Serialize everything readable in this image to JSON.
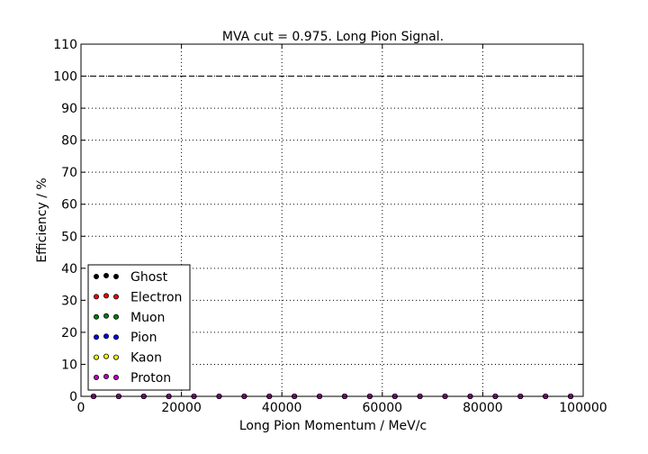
{
  "chart_data": {
    "type": "scatter",
    "title": "MVA cut = 0.975. Long Pion Signal.",
    "xlabel": "Long Pion Momentum / MeV/c",
    "ylabel": "Efficiency / %",
    "xlim": [
      0,
      100000
    ],
    "ylim": [
      0,
      110
    ],
    "xticks": [
      0,
      20000,
      40000,
      60000,
      80000,
      100000
    ],
    "yticks": [
      0,
      10,
      20,
      30,
      40,
      50,
      60,
      70,
      80,
      90,
      100,
      110
    ],
    "grid": true,
    "reference_line": {
      "y": 100,
      "style": "dashed"
    },
    "legend_position": "lower-left",
    "x": [
      2500,
      7500,
      12500,
      17500,
      22500,
      27500,
      32500,
      37500,
      42500,
      47500,
      52500,
      57500,
      62500,
      67500,
      72500,
      77500,
      82500,
      87500,
      92500,
      97500
    ],
    "series": [
      {
        "name": "Ghost",
        "color": "#000000",
        "values": [
          0,
          0,
          0,
          0,
          0,
          0,
          0,
          0,
          0,
          0,
          0,
          0,
          0,
          0,
          0,
          0,
          0,
          0,
          0,
          0
        ]
      },
      {
        "name": "Electron",
        "color": "#ff0000",
        "values": [
          0,
          0,
          0,
          0,
          0,
          0,
          0,
          0,
          0,
          0,
          0,
          0,
          0,
          0,
          0,
          0,
          0,
          0,
          0,
          0
        ]
      },
      {
        "name": "Muon",
        "color": "#008000",
        "values": [
          0,
          0,
          0,
          0,
          0,
          0,
          0,
          0,
          0,
          0,
          0,
          0,
          0,
          0,
          0,
          0,
          0,
          0,
          0,
          0
        ]
      },
      {
        "name": "Pion",
        "color": "#0000ff",
        "values": [
          0,
          0,
          0,
          0,
          0,
          0,
          0,
          0,
          0,
          0,
          0,
          0,
          0,
          0,
          0,
          0,
          0,
          0,
          0,
          0
        ]
      },
      {
        "name": "Kaon",
        "color": "#ffff00",
        "values": [
          0,
          0,
          0,
          0,
          0,
          0,
          0,
          0,
          0,
          0,
          0,
          0,
          0,
          0,
          0,
          0,
          0,
          0,
          0,
          0
        ]
      },
      {
        "name": "Proton",
        "color": "#bf00bf",
        "values": [
          0,
          0,
          0,
          0,
          0,
          0,
          0,
          0,
          0,
          0,
          0,
          0,
          0,
          0,
          0,
          0,
          0,
          0,
          0,
          0
        ]
      }
    ]
  }
}
